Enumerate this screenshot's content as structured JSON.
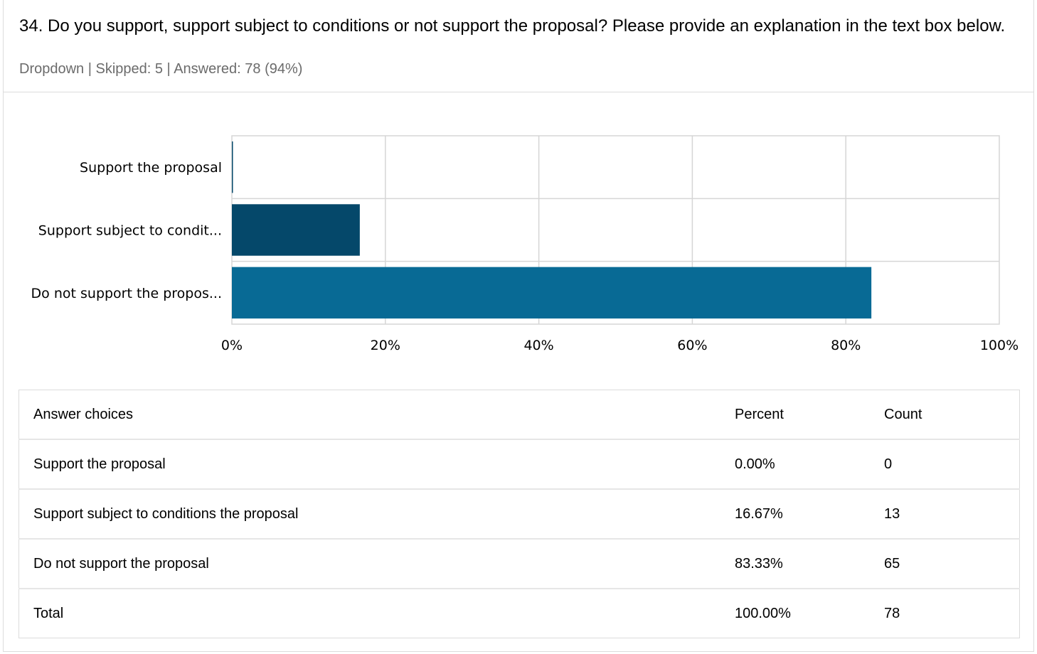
{
  "question": {
    "title": "34. Do you support, support subject to conditions or not support the proposal? Please provide an explanation in the text box below.",
    "type": "Dropdown",
    "skipped": "Skipped: 5",
    "answered": "Answered: 78 (94%)",
    "separator": " | "
  },
  "chart_data": {
    "type": "bar",
    "orientation": "horizontal",
    "categories": [
      "Support the proposal",
      "Support subject to condit...",
      "Do not support the propos..."
    ],
    "values": [
      0.0,
      16.67,
      83.33
    ],
    "colors": [
      "#05486a",
      "#05486a",
      "#086a95"
    ],
    "xlim": [
      0,
      100
    ],
    "x_ticks": [
      "0%",
      "20%",
      "40%",
      "60%",
      "80%",
      "100%"
    ],
    "grid": true,
    "title": "",
    "xlabel": "",
    "ylabel": ""
  },
  "table": {
    "headers": [
      "Answer choices",
      "Percent",
      "Count"
    ],
    "rows": [
      [
        "Support the proposal",
        "0.00%",
        "0"
      ],
      [
        "Support subject to conditions the proposal",
        "16.67%",
        "13"
      ],
      [
        "Do not support the proposal",
        "83.33%",
        "65"
      ],
      [
        "Total",
        "100.00%",
        "78"
      ]
    ]
  }
}
